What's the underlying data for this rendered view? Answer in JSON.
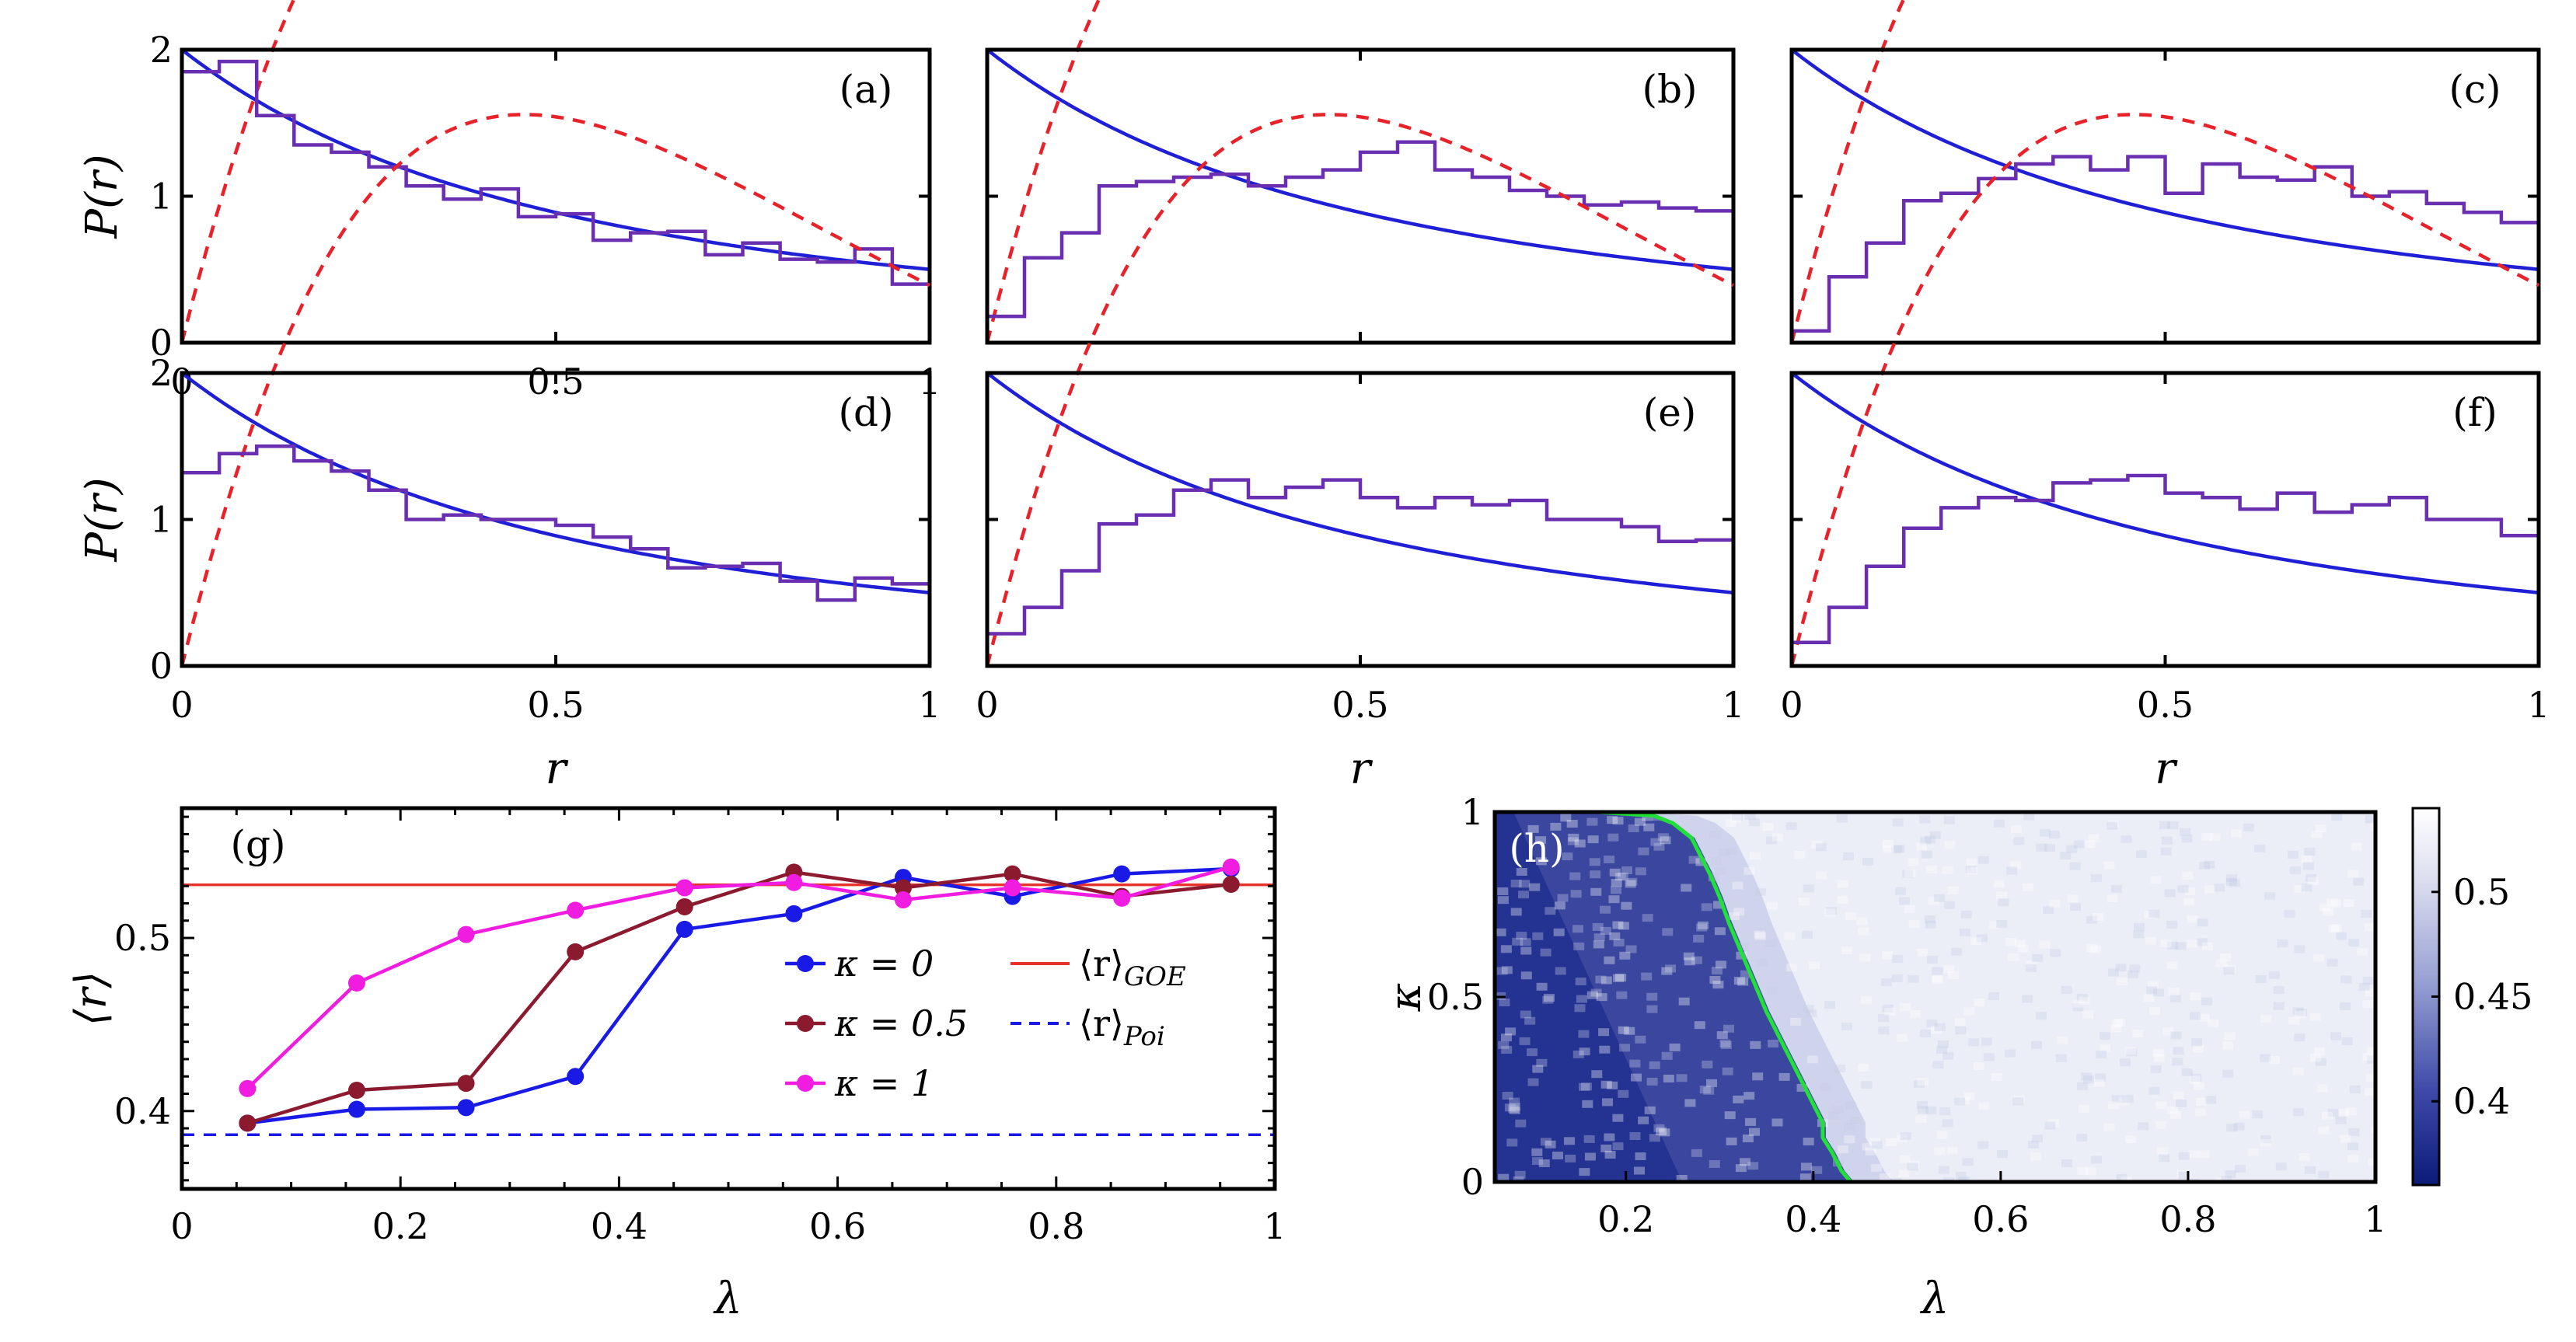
{
  "figure_caption": "",
  "chart_data": [
    {
      "type": "line",
      "id": "a",
      "label": "(a)",
      "xlabel": "r",
      "ylabel": "P(r)",
      "xlim": [
        0,
        1
      ],
      "ylim": [
        0,
        2
      ],
      "xticks": [
        "0",
        "0.5",
        "1"
      ],
      "yticks": [
        "0",
        "1",
        "2"
      ],
      "series": [
        {
          "name": "Poisson",
          "style": "solid",
          "color": "#1f1fd6"
        },
        {
          "name": "GOE",
          "style": "dashed",
          "color": "#e8222a"
        },
        {
          "name": "histogram",
          "style": "step",
          "color": "#6a2fb0",
          "values": [
            1.85,
            1.92,
            1.55,
            1.35,
            1.3,
            1.2,
            1.07,
            0.98,
            1.05,
            0.86,
            0.88,
            0.7,
            0.75,
            0.76,
            0.6,
            0.68,
            0.57,
            0.55,
            0.64,
            0.4
          ]
        }
      ]
    },
    {
      "type": "line",
      "id": "b",
      "label": "(b)",
      "xlabel": "",
      "ylabel": "",
      "xlim": [
        0,
        1
      ],
      "ylim": [
        0,
        2
      ],
      "xticks": [],
      "yticks": [],
      "series": [
        {
          "name": "Poisson",
          "style": "solid",
          "color": "#1f1fd6"
        },
        {
          "name": "GOE",
          "style": "dashed",
          "color": "#e8222a"
        },
        {
          "name": "histogram",
          "style": "step",
          "color": "#6a2fb0",
          "values": [
            0.18,
            0.58,
            0.75,
            1.07,
            1.1,
            1.13,
            1.15,
            1.07,
            1.13,
            1.18,
            1.3,
            1.37,
            1.18,
            1.13,
            1.04,
            1.0,
            0.94,
            0.96,
            0.92,
            0.9
          ]
        }
      ]
    },
    {
      "type": "line",
      "id": "c",
      "label": "(c)",
      "xlabel": "",
      "ylabel": "",
      "xlim": [
        0,
        1
      ],
      "ylim": [
        0,
        2
      ],
      "xticks": [],
      "yticks": [],
      "series": [
        {
          "name": "Poisson",
          "style": "solid",
          "color": "#1f1fd6"
        },
        {
          "name": "GOE",
          "style": "dashed",
          "color": "#e8222a"
        },
        {
          "name": "histogram",
          "style": "step",
          "color": "#6a2fb0",
          "values": [
            0.08,
            0.45,
            0.68,
            0.97,
            1.02,
            1.12,
            1.22,
            1.27,
            1.18,
            1.27,
            1.02,
            1.22,
            1.13,
            1.11,
            1.2,
            1.0,
            1.03,
            0.95,
            0.89,
            0.82
          ]
        }
      ]
    },
    {
      "type": "line",
      "id": "d",
      "label": "(d)",
      "xlabel": "r",
      "ylabel": "P(r)",
      "xlim": [
        0,
        1
      ],
      "ylim": [
        0,
        2
      ],
      "xticks": [
        "0",
        "0.5",
        "1"
      ],
      "yticks": [
        "0",
        "1",
        "2"
      ],
      "series": [
        {
          "name": "Poisson",
          "style": "solid",
          "color": "#1f1fd6"
        },
        {
          "name": "GOE",
          "style": "dashed",
          "color": "#e8222a"
        },
        {
          "name": "histogram",
          "style": "step",
          "color": "#6a2fb0",
          "values": [
            1.32,
            1.45,
            1.5,
            1.4,
            1.33,
            1.2,
            1.0,
            1.03,
            1.0,
            1.0,
            0.96,
            0.88,
            0.8,
            0.67,
            0.68,
            0.7,
            0.58,
            0.45,
            0.6,
            0.56
          ]
        }
      ]
    },
    {
      "type": "line",
      "id": "e",
      "label": "(e)",
      "xlabel": "r",
      "ylabel": "",
      "xlim": [
        0,
        1
      ],
      "ylim": [
        0,
        2
      ],
      "xticks": [
        "0",
        "0.5",
        "1"
      ],
      "yticks": [],
      "series": [
        {
          "name": "Poisson",
          "style": "solid",
          "color": "#1f1fd6"
        },
        {
          "name": "GOE",
          "style": "dashed",
          "color": "#e8222a"
        },
        {
          "name": "histogram",
          "style": "step",
          "color": "#6a2fb0",
          "values": [
            0.22,
            0.4,
            0.65,
            0.97,
            1.03,
            1.2,
            1.27,
            1.15,
            1.22,
            1.27,
            1.15,
            1.08,
            1.15,
            1.1,
            1.13,
            1.0,
            1.0,
            0.95,
            0.85,
            0.86
          ]
        }
      ]
    },
    {
      "type": "line",
      "id": "f",
      "label": "(f)",
      "xlabel": "r",
      "ylabel": "",
      "xlim": [
        0,
        1
      ],
      "ylim": [
        0,
        2
      ],
      "xticks": [
        "0",
        "0.5",
        "1"
      ],
      "yticks": [],
      "series": [
        {
          "name": "Poisson",
          "style": "solid",
          "color": "#1f1fd6"
        },
        {
          "name": "GOE",
          "style": "dashed",
          "color": "#e8222a"
        },
        {
          "name": "histogram",
          "style": "step",
          "color": "#6a2fb0",
          "values": [
            0.16,
            0.4,
            0.68,
            0.94,
            1.08,
            1.15,
            1.13,
            1.25,
            1.27,
            1.3,
            1.18,
            1.15,
            1.07,
            1.18,
            1.05,
            1.1,
            1.15,
            1.0,
            1.0,
            0.89
          ]
        }
      ]
    },
    {
      "type": "line",
      "id": "g",
      "label": "(g)",
      "xlabel": "λ",
      "ylabel": "⟨r⟩",
      "xlim": [
        0,
        1
      ],
      "ylim": [
        0.355,
        0.575
      ],
      "xticks": [
        "0",
        "0.2",
        "0.4",
        "0.6",
        "0.8",
        "1"
      ],
      "yticks": [
        "0.4",
        "0.5"
      ],
      "x": [
        0.06,
        0.16,
        0.26,
        0.36,
        0.46,
        0.56,
        0.66,
        0.76,
        0.86,
        0.96
      ],
      "series": [
        {
          "name": "κ = 0",
          "color": "#1a1ae6",
          "values": [
            0.393,
            0.401,
            0.402,
            0.42,
            0.505,
            0.514,
            0.535,
            0.524,
            0.537,
            0.54
          ]
        },
        {
          "name": "κ = 0.5",
          "color": "#8b1a2e",
          "values": [
            0.393,
            0.412,
            0.416,
            0.492,
            0.518,
            0.538,
            0.529,
            0.537,
            0.524,
            0.531
          ]
        },
        {
          "name": "κ = 1",
          "color": "#f01ce0",
          "values": [
            0.413,
            0.474,
            0.502,
            0.516,
            0.529,
            0.532,
            0.522,
            0.529,
            0.523,
            0.541
          ]
        }
      ],
      "reference_lines": [
        {
          "name": "⟨r⟩GOE",
          "value": 0.5307,
          "style": "solid",
          "color": "#e8332c"
        },
        {
          "name": "⟨r⟩Poi",
          "value": 0.3863,
          "style": "dashed",
          "color": "#1a1ae6"
        }
      ],
      "legend": [
        {
          "text": "κ = 0",
          "color": "#1a1ae6",
          "marker": true
        },
        {
          "text": "κ = 0.5",
          "color": "#8b1a2e",
          "marker": true
        },
        {
          "text": "κ = 1",
          "color": "#f01ce0",
          "marker": true
        },
        {
          "main": "⟨r⟩",
          "sub": "GOE",
          "color": "#e8332c",
          "marker": false
        },
        {
          "main": "⟨r⟩",
          "sub": "Poi",
          "color": "#1a1ae6",
          "marker": false,
          "dashed": true
        }
      ]
    },
    {
      "type": "heatmap",
      "id": "h",
      "label": "(h)",
      "xlabel": "λ",
      "ylabel": "κ",
      "xlim": [
        0.06,
        1
      ],
      "ylim": [
        0,
        1
      ],
      "xticks": [
        "0.2",
        "0.4",
        "0.6",
        "0.8",
        "1"
      ],
      "yticks": [
        "0",
        "0.5",
        "1"
      ],
      "colorbar": {
        "range": [
          0.36,
          0.54
        ],
        "ticks": [
          "0.4",
          "0.45",
          "0.5"
        ]
      },
      "threshold_contour": {
        "color": "#22e03a",
        "points": [
          [
            0.44,
            0.0
          ],
          [
            0.43,
            0.03
          ],
          [
            0.42,
            0.08
          ],
          [
            0.41,
            0.12
          ],
          [
            0.41,
            0.16
          ],
          [
            0.4,
            0.21
          ],
          [
            0.39,
            0.26
          ],
          [
            0.38,
            0.31
          ],
          [
            0.37,
            0.36
          ],
          [
            0.36,
            0.41
          ],
          [
            0.35,
            0.46
          ],
          [
            0.34,
            0.52
          ],
          [
            0.33,
            0.58
          ],
          [
            0.32,
            0.64
          ],
          [
            0.31,
            0.7
          ],
          [
            0.3,
            0.77
          ],
          [
            0.29,
            0.83
          ],
          [
            0.28,
            0.88
          ],
          [
            0.27,
            0.93
          ],
          [
            0.25,
            0.97
          ],
          [
            0.23,
            0.99
          ],
          [
            0.17,
            1.0
          ]
        ]
      }
    }
  ]
}
